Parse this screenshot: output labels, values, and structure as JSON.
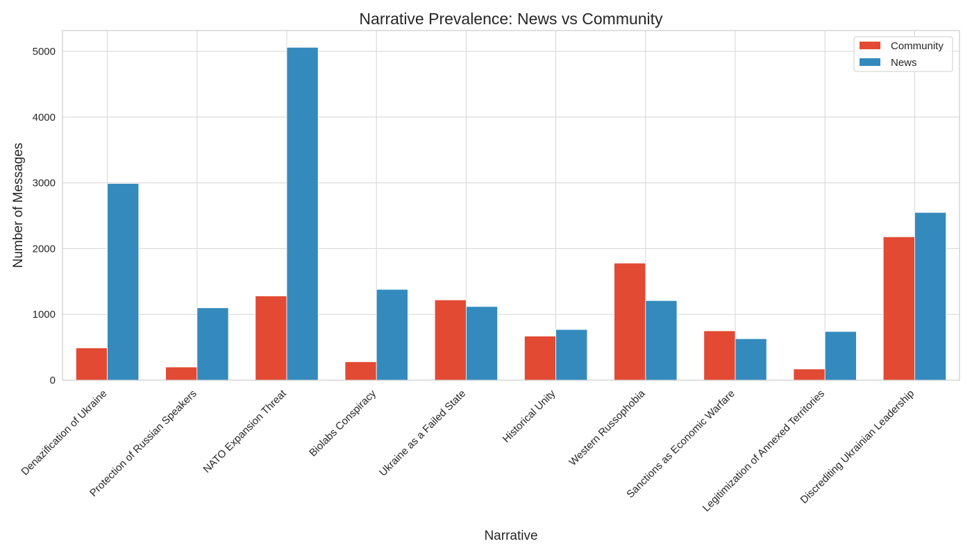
{
  "chart_data": {
    "type": "bar",
    "title": "Narrative Prevalence: News vs Community",
    "xlabel": "Narrative",
    "ylabel": "Number of Messages",
    "categories": [
      "Denazification of Ukraine",
      "Protection of Russian Speakers",
      "NATO Expansion Threat",
      "Biolabs Conspiracy",
      "Ukraine as a Failed State",
      "Historical Unity",
      "Western Russophobia",
      "Sanctions as Economic Warfare",
      "Legitimization of Annexed Territories",
      "Discrediting Ukrainian Leadership"
    ],
    "series": [
      {
        "name": "Community",
        "color": "#e24a33",
        "values": [
          490,
          200,
          1280,
          280,
          1220,
          670,
          1780,
          750,
          170,
          2180
        ]
      },
      {
        "name": "News",
        "color": "#348abd",
        "values": [
          2990,
          1100,
          5060,
          1380,
          1120,
          770,
          1210,
          630,
          740,
          2550
        ]
      }
    ],
    "ylim": [
      0,
      5316
    ],
    "yticks": [
      0,
      1000,
      2000,
      3000,
      4000,
      5000
    ],
    "grid": true,
    "legend_position": "top-right"
  }
}
